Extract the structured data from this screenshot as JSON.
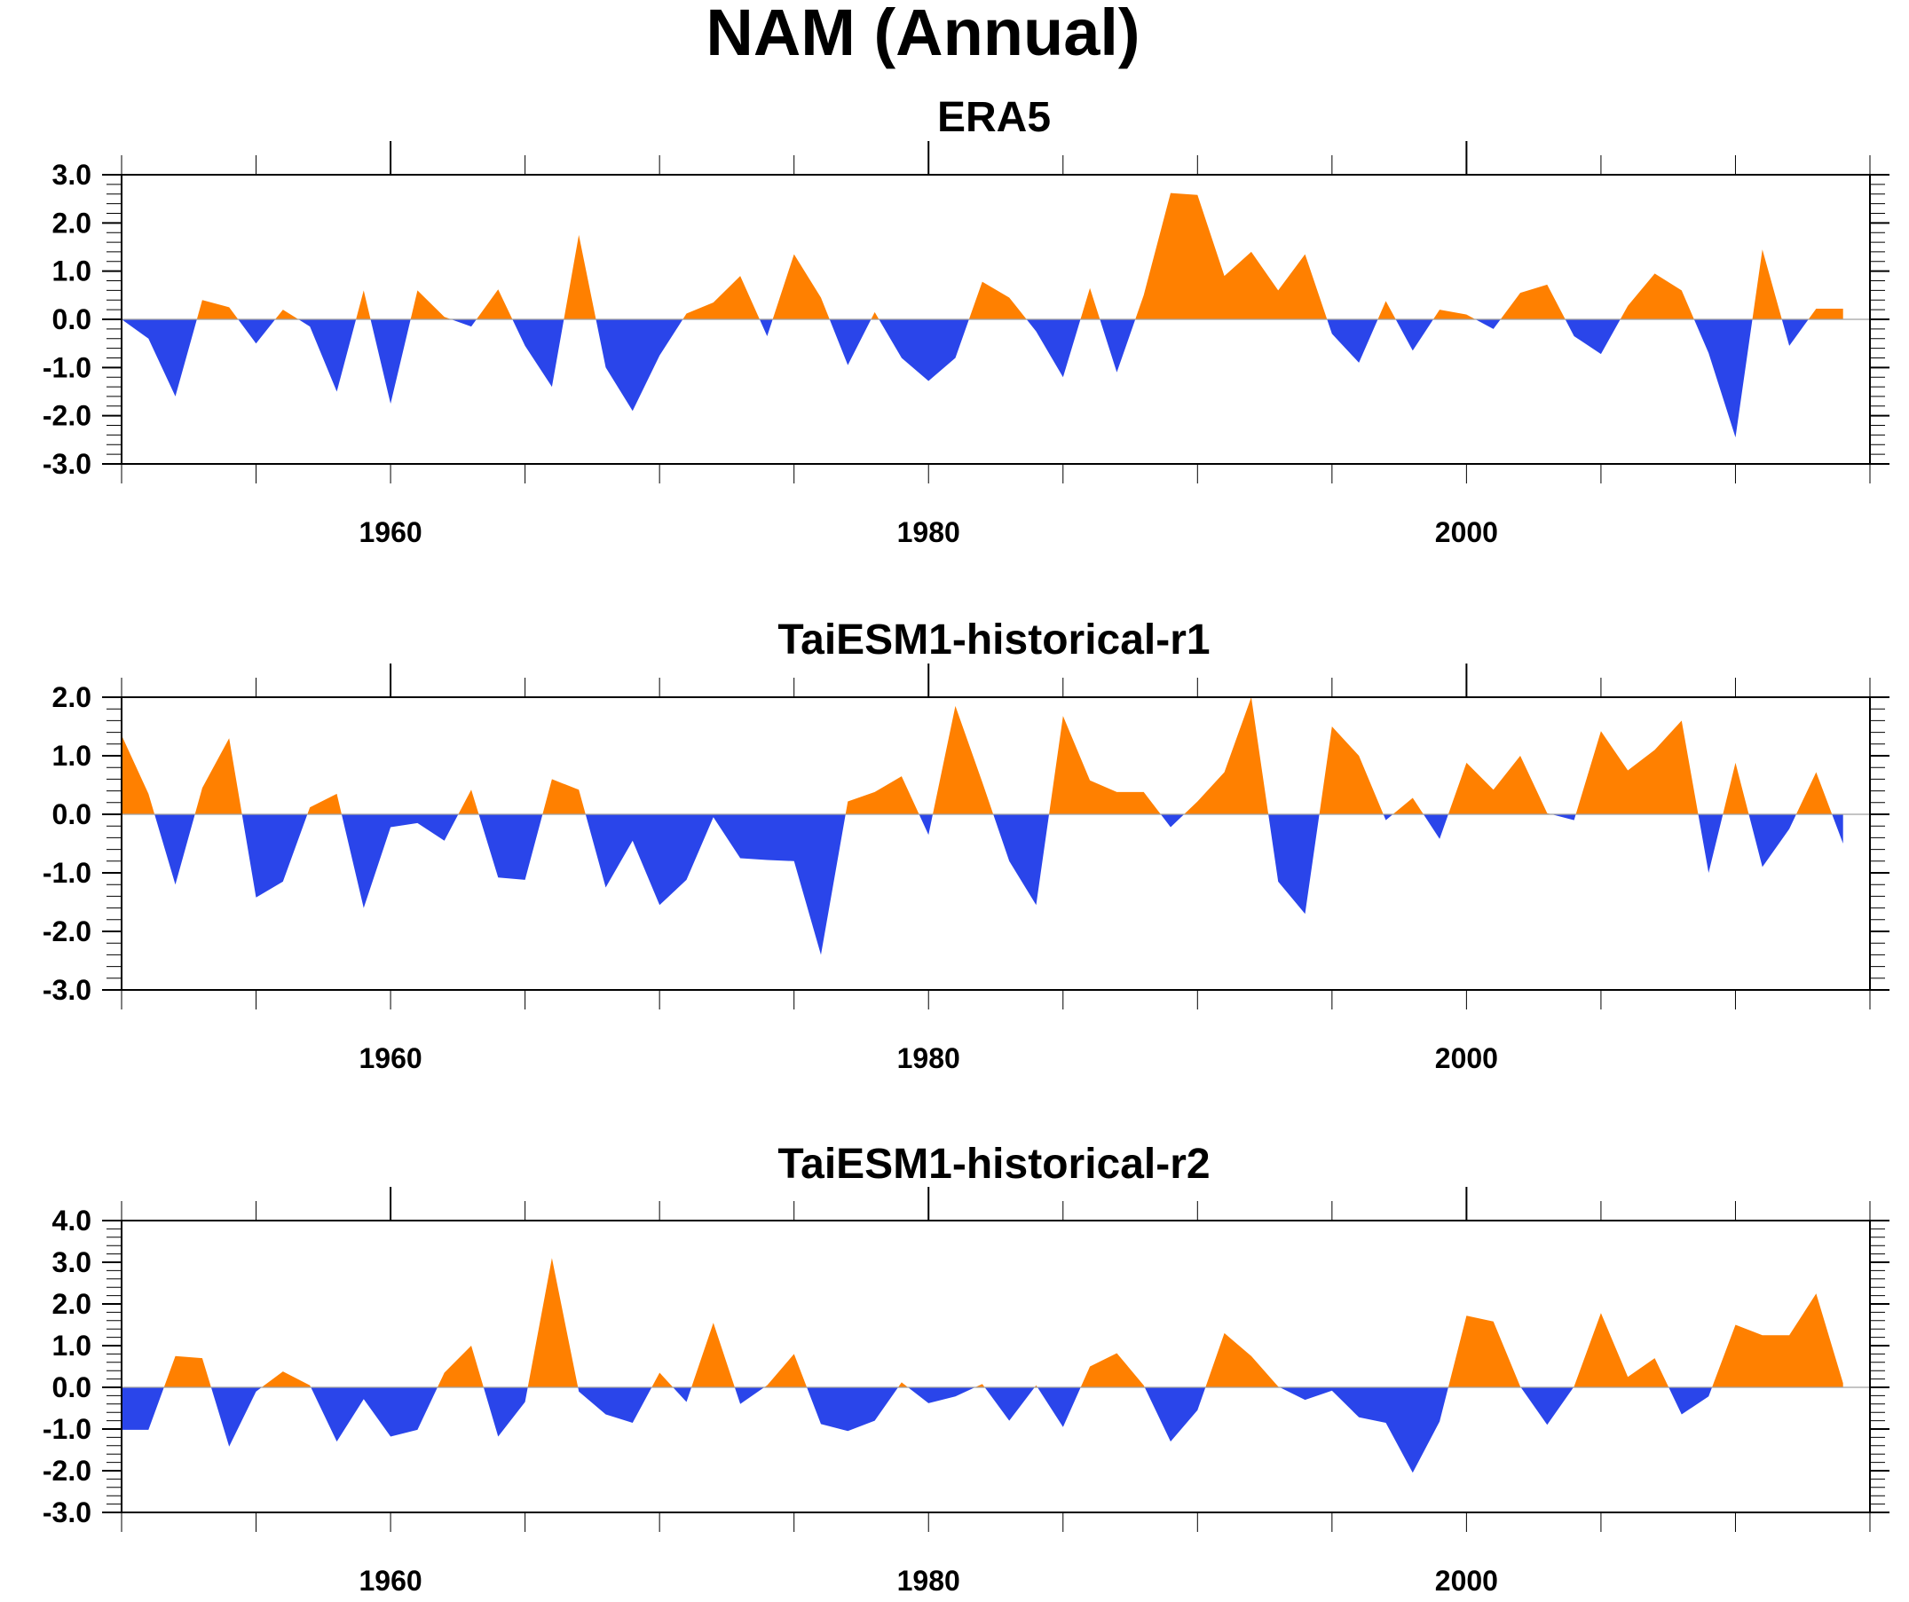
{
  "figure": {
    "title": "NAM (Annual)"
  },
  "colors": {
    "positive": "#ff8000",
    "negative": "#2a45ea",
    "axis": "#000000",
    "zero_line": "#a0a0a0"
  },
  "chart_data": [
    {
      "type": "area",
      "title": "ERA5",
      "xlabel": "",
      "ylabel": "",
      "xlim": [
        1950,
        2015
      ],
      "ylim": [
        -3.0,
        3.0
      ],
      "x_ticks": [
        1960,
        1980,
        2000
      ],
      "y_ticks": [
        "-3.0",
        "-2.0",
        "-1.0",
        "0.0",
        "1.0",
        "2.0",
        "3.0"
      ],
      "fill_positive": "#ff8000",
      "fill_negative": "#2a45ea",
      "x": [
        1950,
        1951,
        1952,
        1953,
        1954,
        1955,
        1956,
        1957,
        1958,
        1959,
        1960,
        1961,
        1962,
        1963,
        1964,
        1965,
        1966,
        1967,
        1968,
        1969,
        1970,
        1971,
        1972,
        1973,
        1974,
        1975,
        1976,
        1977,
        1978,
        1979,
        1980,
        1981,
        1982,
        1983,
        1984,
        1985,
        1986,
        1987,
        1988,
        1989,
        1990,
        1991,
        1992,
        1993,
        1994,
        1995,
        1996,
        1997,
        1998,
        1999,
        2000,
        2001,
        2002,
        2003,
        2004,
        2005,
        2006,
        2007,
        2008,
        2009,
        2010,
        2011,
        2012,
        2013,
        2014
      ],
      "values": [
        0.0,
        -0.4,
        -1.6,
        0.4,
        0.25,
        -0.5,
        0.2,
        -0.15,
        -1.5,
        0.6,
        -1.75,
        0.6,
        0.05,
        -0.15,
        0.62,
        -0.55,
        -1.4,
        1.75,
        -1.0,
        -1.9,
        -0.75,
        0.12,
        0.35,
        0.9,
        -0.35,
        1.35,
        0.45,
        -0.95,
        0.15,
        -0.8,
        -1.28,
        -0.8,
        0.78,
        0.45,
        -0.25,
        -1.2,
        0.65,
        -1.1,
        0.5,
        2.62,
        2.58,
        0.9,
        1.4,
        0.6,
        1.35,
        -0.3,
        -0.9,
        0.38,
        -0.65,
        0.2,
        0.1,
        -0.2,
        0.55,
        0.72,
        -0.35,
        -0.72,
        0.28,
        0.95,
        0.6,
        -0.7,
        -2.45,
        1.45,
        -0.55,
        0.22,
        0.22
      ]
    },
    {
      "type": "area",
      "title": "TaiESM1-historical-r1",
      "xlabel": "",
      "ylabel": "",
      "xlim": [
        1950,
        2015
      ],
      "ylim": [
        -3.0,
        2.0
      ],
      "x_ticks": [
        1960,
        1980,
        2000
      ],
      "y_ticks": [
        "-3.0",
        "-2.0",
        "-1.0",
        "0.0",
        "1.0",
        "2.0"
      ],
      "fill_positive": "#ff8000",
      "fill_negative": "#2a45ea",
      "x": [
        1950,
        1951,
        1952,
        1953,
        1954,
        1955,
        1956,
        1957,
        1958,
        1959,
        1960,
        1961,
        1962,
        1963,
        1964,
        1965,
        1966,
        1967,
        1968,
        1969,
        1970,
        1971,
        1972,
        1973,
        1974,
        1975,
        1976,
        1977,
        1978,
        1979,
        1980,
        1981,
        1982,
        1983,
        1984,
        1985,
        1986,
        1987,
        1988,
        1989,
        1990,
        1991,
        1992,
        1993,
        1994,
        1995,
        1996,
        1997,
        1998,
        1999,
        2000,
        2001,
        2002,
        2003,
        2004,
        2005,
        2006,
        2007,
        2008,
        2009,
        2010,
        2011,
        2012,
        2013,
        2014
      ],
      "values": [
        1.35,
        0.35,
        -1.2,
        0.45,
        1.3,
        -1.42,
        -1.15,
        0.12,
        0.35,
        -1.6,
        -0.22,
        -0.15,
        -0.45,
        0.42,
        -1.08,
        -1.12,
        0.6,
        0.42,
        -1.25,
        -0.45,
        -1.55,
        -1.12,
        -0.05,
        -0.75,
        -0.78,
        -0.8,
        -2.4,
        0.22,
        0.38,
        0.65,
        -0.35,
        1.85,
        0.55,
        -0.8,
        -1.55,
        1.68,
        0.58,
        0.38,
        0.38,
        -0.22,
        0.22,
        0.72,
        2.0,
        -1.15,
        -1.7,
        1.5,
        1.0,
        -0.1,
        0.28,
        -0.42,
        0.88,
        0.42,
        1.0,
        0.02,
        -0.1,
        1.42,
        0.75,
        1.1,
        1.6,
        -1.0,
        0.88,
        -0.9,
        -0.25,
        0.72,
        -0.5
      ]
    },
    {
      "type": "area",
      "title": "TaiESM1-historical-r2",
      "xlabel": "",
      "ylabel": "",
      "xlim": [
        1950,
        2015
      ],
      "ylim": [
        -3.0,
        4.0
      ],
      "x_ticks": [
        1960,
        1980,
        2000
      ],
      "y_ticks": [
        "-3.0",
        "-2.0",
        "-1.0",
        "0.0",
        "1.0",
        "2.0",
        "3.0",
        "4.0"
      ],
      "fill_positive": "#ff8000",
      "fill_negative": "#2a45ea",
      "x": [
        1950,
        1951,
        1952,
        1953,
        1954,
        1955,
        1956,
        1957,
        1958,
        1959,
        1960,
        1961,
        1962,
        1963,
        1964,
        1965,
        1966,
        1967,
        1968,
        1969,
        1970,
        1971,
        1972,
        1973,
        1974,
        1975,
        1976,
        1977,
        1978,
        1979,
        1980,
        1981,
        1982,
        1983,
        1984,
        1985,
        1986,
        1987,
        1988,
        1989,
        1990,
        1991,
        1992,
        1993,
        1994,
        1995,
        1996,
        1997,
        1998,
        1999,
        2000,
        2001,
        2002,
        2003,
        2004,
        2005,
        2006,
        2007,
        2008,
        2009,
        2010,
        2011,
        2012,
        2013,
        2014
      ],
      "values": [
        -1.02,
        -1.02,
        0.75,
        0.7,
        -1.42,
        -0.1,
        0.38,
        0.05,
        -1.3,
        -0.28,
        -1.18,
        -1.02,
        0.35,
        1.0,
        -1.18,
        -0.35,
        3.1,
        -0.1,
        -0.65,
        -0.85,
        0.35,
        -0.35,
        1.55,
        -0.4,
        0.05,
        0.8,
        -0.88,
        -1.05,
        -0.8,
        0.12,
        -0.38,
        -0.22,
        0.08,
        -0.8,
        0.05,
        -0.95,
        0.5,
        0.82,
        0.05,
        -1.3,
        -0.55,
        1.3,
        0.75,
        0.02,
        -0.3,
        -0.08,
        -0.72,
        -0.85,
        -2.05,
        -0.82,
        1.72,
        1.58,
        0.02,
        -0.9,
        0.02,
        1.78,
        0.25,
        0.7,
        -0.65,
        -0.22,
        1.5,
        1.25,
        1.25,
        2.25,
        0.1
      ]
    }
  ]
}
